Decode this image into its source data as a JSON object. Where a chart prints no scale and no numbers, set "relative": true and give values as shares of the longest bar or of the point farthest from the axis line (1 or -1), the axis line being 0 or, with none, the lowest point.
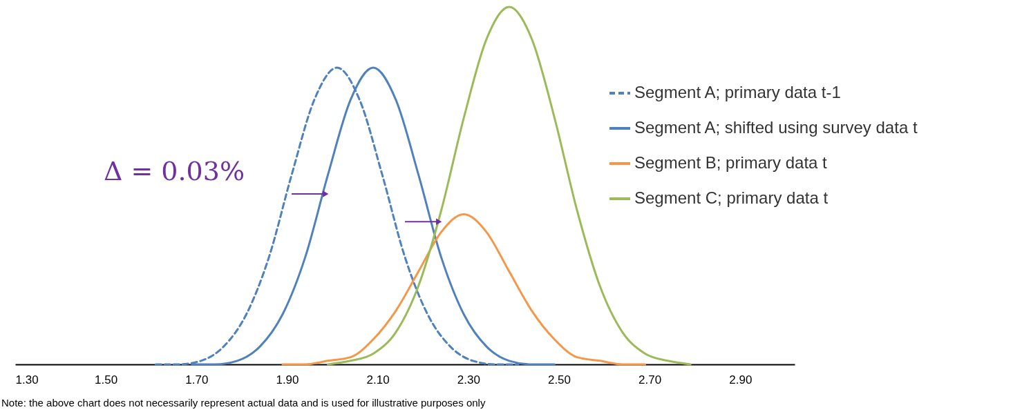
{
  "chart_data": {
    "type": "line",
    "relative": true,
    "xlim": [
      1.3,
      3.02
    ],
    "xticks": [
      {
        "value": 1.3,
        "label": "1.30"
      },
      {
        "value": 1.5,
        "label": "1.50"
      },
      {
        "value": 1.7,
        "label": "1.70"
      },
      {
        "value": 1.9,
        "label": "1.90"
      },
      {
        "value": 2.1,
        "label": "2.10"
      },
      {
        "value": 2.3,
        "label": "2.30"
      },
      {
        "value": 2.5,
        "label": "2.50"
      },
      {
        "value": 2.7,
        "label": "2.70"
      },
      {
        "value": 2.9,
        "label": "2.90"
      }
    ],
    "series": [
      {
        "name": "Segment A; primary data t-1",
        "color": "#4f81bd",
        "line_style": "dashed",
        "x": [
          1.61,
          1.66,
          1.71,
          1.76,
          1.81,
          1.86,
          1.91,
          1.96,
          2.01,
          2.06,
          2.11,
          2.16,
          2.21,
          2.26,
          2.31,
          2.36,
          2.41
        ],
        "values": [
          0,
          0,
          0.01,
          0.05,
          0.14,
          0.3,
          0.53,
          0.74,
          0.83,
          0.74,
          0.53,
          0.3,
          0.14,
          0.05,
          0.01,
          0,
          0
        ]
      },
      {
        "name": "Segment A; shifted using survey data t",
        "color": "#4f81bd",
        "line_style": "solid",
        "x": [
          1.69,
          1.74,
          1.79,
          1.84,
          1.89,
          1.94,
          1.99,
          2.04,
          2.09,
          2.14,
          2.19,
          2.24,
          2.29,
          2.34,
          2.39,
          2.44,
          2.49
        ],
        "values": [
          0,
          0,
          0.01,
          0.05,
          0.14,
          0.3,
          0.53,
          0.74,
          0.83,
          0.74,
          0.53,
          0.3,
          0.14,
          0.05,
          0.01,
          0,
          0
        ]
      },
      {
        "name": "Segment B; primary data t",
        "color": "#f79646",
        "line_style": "solid",
        "x": [
          1.89,
          1.94,
          1.99,
          2.04,
          2.09,
          2.14,
          2.19,
          2.24,
          2.29,
          2.34,
          2.39,
          2.44,
          2.49,
          2.54,
          2.59,
          2.64,
          2.69
        ],
        "values": [
          0,
          0,
          0.01,
          0.02,
          0.07,
          0.15,
          0.26,
          0.37,
          0.42,
          0.37,
          0.26,
          0.15,
          0.07,
          0.02,
          0.01,
          0,
          0
        ]
      },
      {
        "name": "Segment C; primary data t",
        "color": "#9bbb59",
        "line_style": "solid",
        "x": [
          1.99,
          2.04,
          2.09,
          2.14,
          2.19,
          2.24,
          2.29,
          2.34,
          2.39,
          2.44,
          2.49,
          2.54,
          2.59,
          2.64,
          2.69,
          2.74,
          2.79
        ],
        "values": [
          0,
          0.01,
          0.03,
          0.09,
          0.22,
          0.43,
          0.69,
          0.91,
          1,
          0.91,
          0.69,
          0.43,
          0.22,
          0.09,
          0.03,
          0.01,
          0
        ]
      }
    ],
    "annotations": [
      "Δ = 0.03%",
      "Note: the above chart does not necessarily represent actual data and is used for illustrative purposes only"
    ],
    "legend": "top right",
    "grid": false
  }
}
